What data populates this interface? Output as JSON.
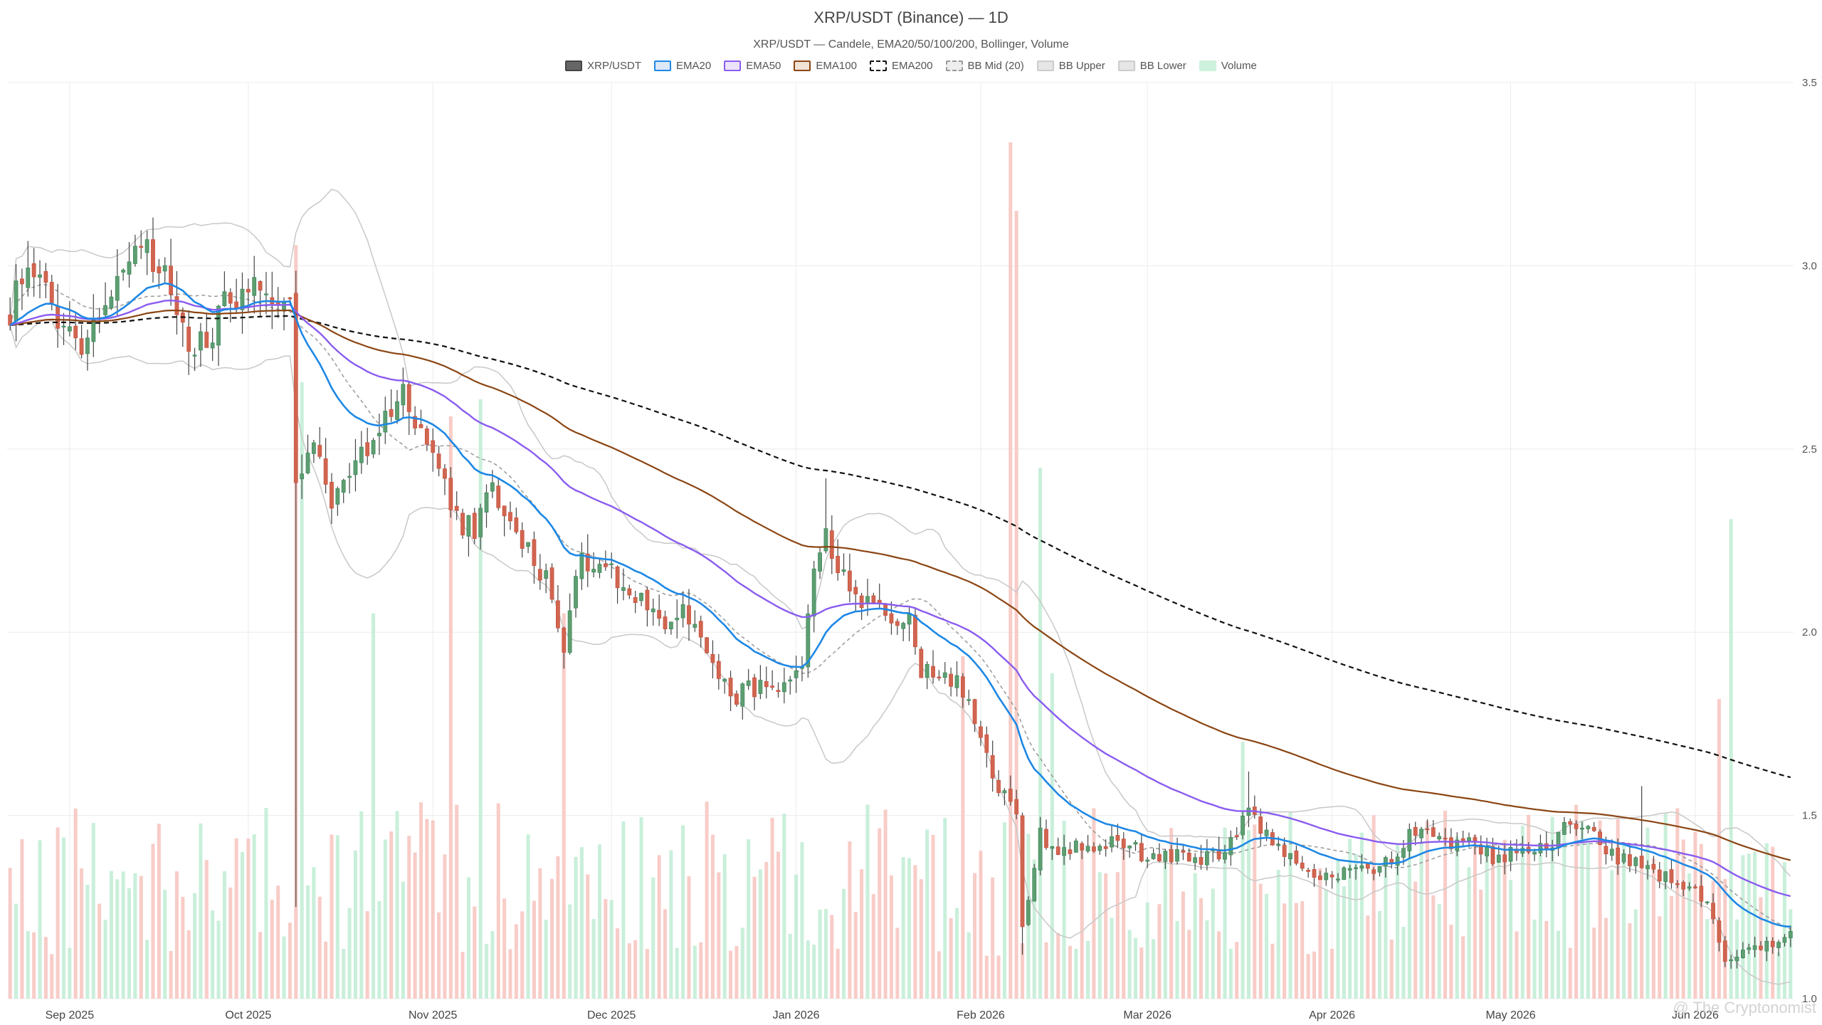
{
  "chart_data": {
    "type": "candlestick",
    "title": "XRP/USDT (Binance) — 1D",
    "subtitle": "XRP/USDT — Candele, EMA20/50/100/200, Bollinger, Volume",
    "legend": [
      {
        "name": "XRP/USDT",
        "color": "#666666",
        "border": "#444444"
      },
      {
        "name": "EMA20",
        "color": "#dbe8f7",
        "border": "#1e88e5"
      },
      {
        "name": "EMA50",
        "color": "#ece3fb",
        "border": "#8a5cf0"
      },
      {
        "name": "EMA100",
        "color": "#f1e2d6",
        "border": "#8b4513"
      },
      {
        "name": "EMA200",
        "color": "#ffffff",
        "border": "#111111",
        "dashed": true
      },
      {
        "name": "BB Mid (20)",
        "color": "#eeeeee",
        "border": "#999999",
        "dashed": true
      },
      {
        "name": "BB Upper",
        "color": "#e6e6e6",
        "border": "#cccccc"
      },
      {
        "name": "BB Lower",
        "color": "#e6e6e6",
        "border": "#cccccc"
      },
      {
        "name": "Volume",
        "color": "#cdf1dd",
        "border": "#cdf1dd"
      }
    ],
    "x_ticks": [
      "Sep 2025",
      "Oct 2025",
      "Nov 2025",
      "Dec 2025",
      "Jan 2026",
      "Feb 2026",
      "Mar 2026",
      "Apr 2026",
      "May 2026",
      "Jun 2026"
    ],
    "y_ticks": [
      "3.5",
      "3.0",
      "2.5",
      "2.0",
      "1.5",
      "1.0"
    ],
    "ylim": [
      1.0,
      3.5
    ],
    "start_date": "2025-08-22",
    "days": 300,
    "grid": true,
    "legend_placement": "top-center",
    "price_anchors": [
      [
        0,
        2.88
      ],
      [
        3,
        3.02
      ],
      [
        6,
        2.92
      ],
      [
        9,
        2.82
      ],
      [
        12,
        2.8
      ],
      [
        15,
        2.88
      ],
      [
        18,
        2.96
      ],
      [
        21,
        3.08
      ],
      [
        24,
        3.0
      ],
      [
        27,
        2.94
      ],
      [
        30,
        2.8
      ],
      [
        33,
        2.78
      ],
      [
        36,
        2.9
      ],
      [
        39,
        2.94
      ],
      [
        42,
        2.96
      ],
      [
        45,
        2.92
      ],
      [
        47,
        2.88
      ],
      [
        48,
        2.4
      ],
      [
        51,
        2.5
      ],
      [
        54,
        2.35
      ],
      [
        57,
        2.45
      ],
      [
        60,
        2.48
      ],
      [
        63,
        2.6
      ],
      [
        66,
        2.65
      ],
      [
        69,
        2.55
      ],
      [
        72,
        2.45
      ],
      [
        75,
        2.3
      ],
      [
        78,
        2.28
      ],
      [
        81,
        2.4
      ],
      [
        84,
        2.28
      ],
      [
        87,
        2.22
      ],
      [
        90,
        2.15
      ],
      [
        93,
        1.96
      ],
      [
        95,
        2.18
      ],
      [
        98,
        2.2
      ],
      [
        101,
        2.18
      ],
      [
        104,
        2.1
      ],
      [
        107,
        2.08
      ],
      [
        110,
        2.02
      ],
      [
        113,
        2.05
      ],
      [
        116,
        1.98
      ],
      [
        119,
        1.88
      ],
      [
        122,
        1.83
      ],
      [
        125,
        1.85
      ],
      [
        128,
        1.83
      ],
      [
        130,
        1.84
      ],
      [
        133,
        1.88
      ],
      [
        135,
        2.18
      ],
      [
        137,
        2.3
      ],
      [
        139,
        2.16
      ],
      [
        142,
        2.1
      ],
      [
        145,
        2.08
      ],
      [
        148,
        2.05
      ],
      [
        151,
        2.02
      ],
      [
        153,
        1.9
      ],
      [
        156,
        1.88
      ],
      [
        159,
        1.87
      ],
      [
        162,
        1.75
      ],
      [
        165,
        1.6
      ],
      [
        167,
        1.55
      ],
      [
        169,
        1.5
      ],
      [
        170,
        1.2
      ],
      [
        173,
        1.45
      ],
      [
        176,
        1.4
      ],
      [
        179,
        1.42
      ],
      [
        182,
        1.4
      ],
      [
        185,
        1.43
      ],
      [
        188,
        1.42
      ],
      [
        191,
        1.38
      ],
      [
        194,
        1.4
      ],
      [
        197,
        1.38
      ],
      [
        200,
        1.38
      ],
      [
        203,
        1.4
      ],
      [
        206,
        1.44
      ],
      [
        208,
        1.53
      ],
      [
        211,
        1.44
      ],
      [
        214,
        1.4
      ],
      [
        217,
        1.35
      ],
      [
        220,
        1.32
      ],
      [
        223,
        1.34
      ],
      [
        226,
        1.35
      ],
      [
        229,
        1.34
      ],
      [
        232,
        1.38
      ],
      [
        235,
        1.45
      ],
      [
        238,
        1.48
      ],
      [
        241,
        1.42
      ],
      [
        244,
        1.44
      ],
      [
        247,
        1.4
      ],
      [
        250,
        1.38
      ],
      [
        253,
        1.4
      ],
      [
        256,
        1.4
      ],
      [
        259,
        1.42
      ],
      [
        262,
        1.48
      ],
      [
        265,
        1.46
      ],
      [
        268,
        1.4
      ],
      [
        271,
        1.38
      ],
      [
        274,
        1.36
      ],
      [
        277,
        1.34
      ],
      [
        280,
        1.32
      ],
      [
        283,
        1.3
      ],
      [
        286,
        1.22
      ],
      [
        288,
        1.1
      ],
      [
        291,
        1.12
      ],
      [
        294,
        1.14
      ],
      [
        297,
        1.15
      ],
      [
        299,
        1.18
      ]
    ],
    "volume_spikes": [
      [
        48,
        0.88
      ],
      [
        49,
        0.72
      ],
      [
        61,
        0.45
      ],
      [
        74,
        0.68
      ],
      [
        79,
        0.7
      ],
      [
        93,
        0.45
      ],
      [
        160,
        0.4
      ],
      [
        168,
        1.0
      ],
      [
        169,
        0.92
      ],
      [
        173,
        0.62
      ],
      [
        175,
        0.38
      ],
      [
        207,
        0.3
      ],
      [
        287,
        0.35
      ],
      [
        289,
        0.56
      ]
    ]
  },
  "watermark": "@ The Cryptonomist"
}
